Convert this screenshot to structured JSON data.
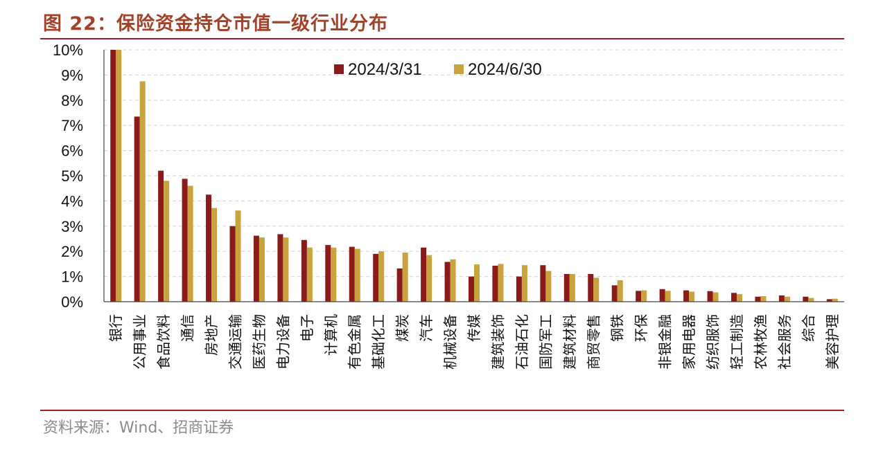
{
  "figure": {
    "title": "图 22：保险资金持仓市值一级行业分布",
    "source": "资料来源：Wind、招商证券"
  },
  "colors": {
    "series1": "#8b1a1a",
    "series2": "#c9a33e",
    "rule": "#9b1c1c",
    "title": "#a3422a",
    "grid": "#d9d9d9"
  },
  "chart_data": {
    "type": "bar",
    "title": "",
    "xlabel": "",
    "ylabel": "",
    "ylim": [
      0,
      10
    ],
    "yticks": [
      "0%",
      "1%",
      "2%",
      "3%",
      "4%",
      "5%",
      "6%",
      "7%",
      "8%",
      "9%",
      "10%"
    ],
    "grid": "horizontal dashed",
    "legend": "top-center",
    "categories": [
      "银行",
      "公用事业",
      "食品饮料",
      "通信",
      "房地产",
      "交通运输",
      "医药生物",
      "电力设备",
      "电子",
      "计算机",
      "有色金属",
      "基础化工",
      "煤炭",
      "汽车",
      "机械设备",
      "传媒",
      "建筑装饰",
      "石油石化",
      "国防军工",
      "建筑材料",
      "商贸零售",
      "钢铁",
      "环保",
      "非银金融",
      "家用电器",
      "纺织服饰",
      "轻工制造",
      "农林牧渔",
      "社会服务",
      "综合",
      "美容护理"
    ],
    "series": [
      {
        "name": "2024/3/31",
        "values": [
          10.0,
          7.35,
          5.2,
          4.88,
          4.25,
          3.0,
          2.62,
          2.68,
          2.45,
          2.25,
          2.18,
          1.9,
          1.32,
          2.15,
          1.58,
          1.0,
          1.43,
          1.0,
          1.45,
          1.1,
          1.1,
          0.65,
          0.43,
          0.5,
          0.45,
          0.42,
          0.35,
          0.2,
          0.25,
          0.2,
          0.1
        ]
      },
      {
        "name": "2024/6/30",
        "values": [
          10.0,
          8.75,
          4.8,
          4.6,
          3.72,
          3.62,
          2.55,
          2.55,
          2.15,
          2.15,
          2.1,
          2.0,
          1.95,
          1.85,
          1.68,
          1.48,
          1.5,
          1.45,
          1.22,
          1.1,
          0.95,
          0.85,
          0.45,
          0.43,
          0.4,
          0.37,
          0.3,
          0.22,
          0.2,
          0.15,
          0.12
        ]
      }
    ]
  }
}
